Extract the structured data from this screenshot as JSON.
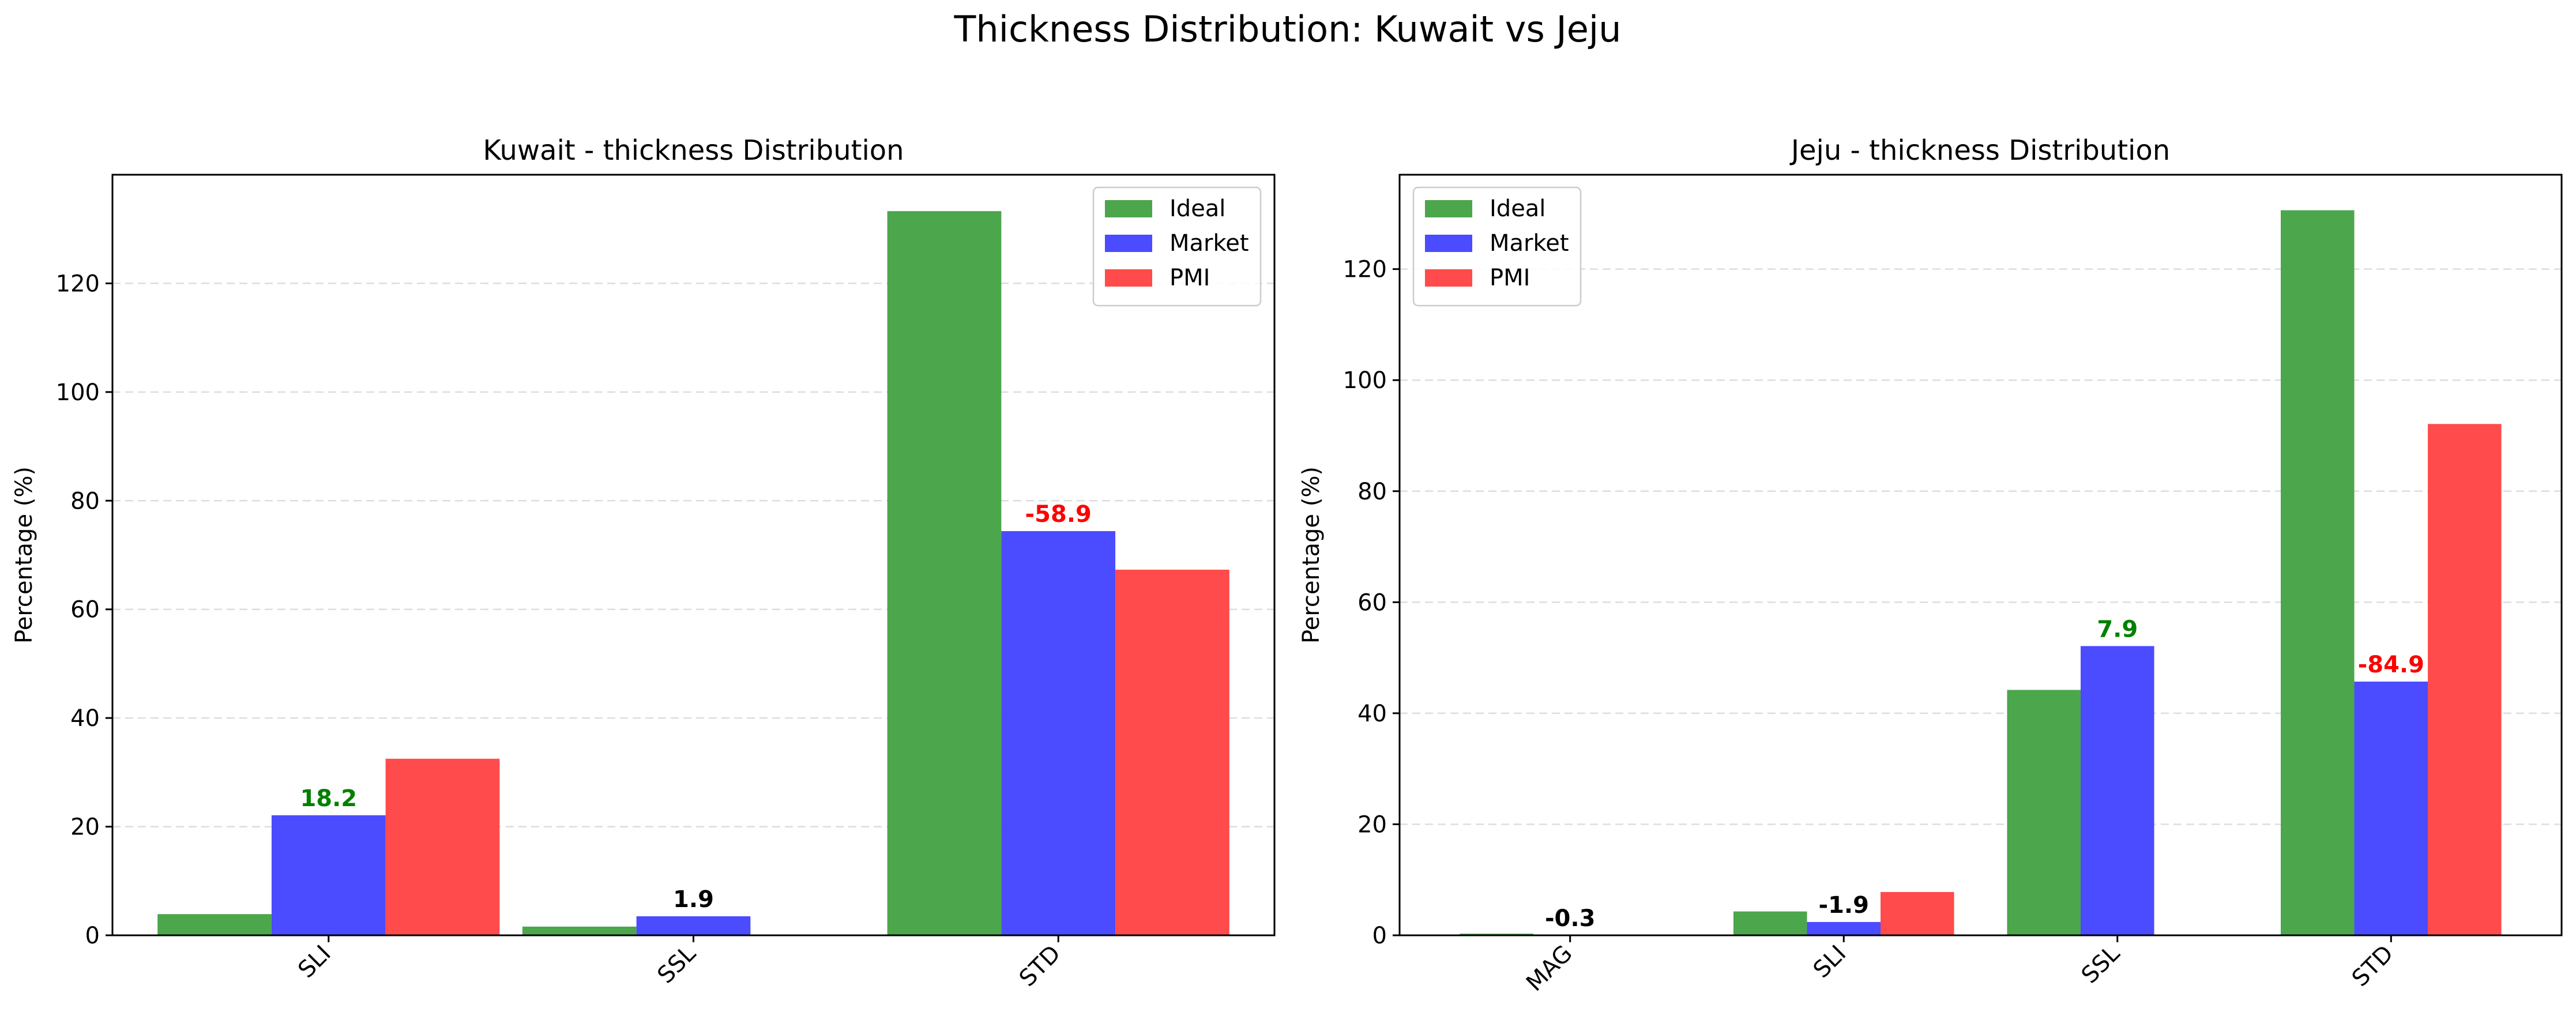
{
  "figure_title": "Thickness Distribution: Kuwait vs Jeju",
  "colors": {
    "Ideal": "#4ca64c",
    "Market": "#4b4bff",
    "PMI": "#ff4b4b",
    "positive_label": "#008000",
    "negative_label": "#ff0000",
    "neutral_label": "#000000",
    "grid": "#dddddd"
  },
  "chart_data": [
    {
      "type": "bar",
      "title": "Kuwait - thickness Distribution",
      "xlabel": "",
      "ylabel": "Percentage (%)",
      "categories": [
        "SLI",
        "SSL",
        "STD"
      ],
      "series": [
        {
          "name": "Ideal",
          "values": [
            3.9,
            1.6,
            133.3
          ]
        },
        {
          "name": "Market",
          "values": [
            22.1,
            3.5,
            74.4
          ]
        },
        {
          "name": "PMI",
          "values": [
            32.5,
            0,
            67.3
          ]
        }
      ],
      "diff_labels": [
        {
          "category": "SLI",
          "text": "18.2",
          "color": "positive"
        },
        {
          "category": "SSL",
          "text": "1.9",
          "color": "neutral"
        },
        {
          "category": "STD",
          "text": "-58.9",
          "color": "negative"
        }
      ],
      "ylim": [
        0,
        140
      ],
      "yticks": [
        0,
        20,
        40,
        60,
        80,
        100,
        120
      ],
      "grid": "y dashed",
      "legend_position": "upper right"
    },
    {
      "type": "bar",
      "title": "Jeju - thickness Distribution",
      "xlabel": "",
      "ylabel": "Percentage (%)",
      "categories": [
        "MAG",
        "SLI",
        "SSL",
        "STD"
      ],
      "series": [
        {
          "name": "Ideal",
          "values": [
            0.3,
            4.3,
            44.2,
            130.6
          ]
        },
        {
          "name": "Market",
          "values": [
            0,
            2.4,
            52.1,
            45.7
          ]
        },
        {
          "name": "PMI",
          "values": [
            0,
            7.8,
            0,
            92.1
          ]
        }
      ],
      "diff_labels": [
        {
          "category": "MAG",
          "text": "-0.3",
          "color": "neutral"
        },
        {
          "category": "SLI",
          "text": "-1.9",
          "color": "neutral"
        },
        {
          "category": "SSL",
          "text": "7.9",
          "color": "positive"
        },
        {
          "category": "STD",
          "text": "-84.9",
          "color": "negative"
        }
      ],
      "ylim": [
        0,
        137
      ],
      "yticks": [
        0,
        20,
        40,
        60,
        80,
        100,
        120
      ],
      "grid": "y dashed",
      "legend_position": "upper left"
    }
  ]
}
